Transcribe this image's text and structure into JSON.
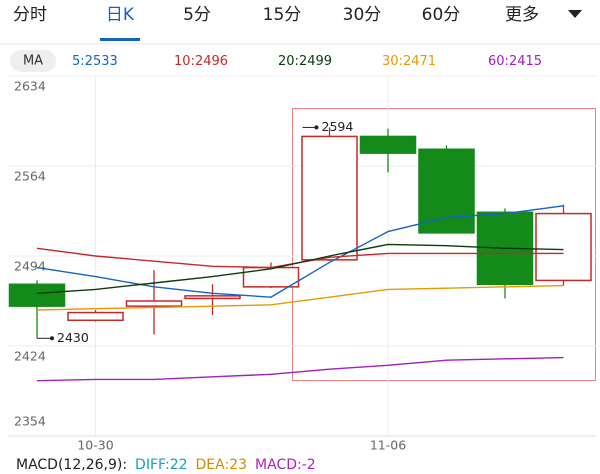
{
  "tabs": {
    "items": [
      "分时",
      "日K",
      "5分",
      "15分",
      "30分",
      "60分"
    ],
    "active": "日K",
    "more": "更多"
  },
  "chart_data": {
    "type": "candlestick",
    "ma_label": "MA",
    "separator": ":",
    "categories": [
      null,
      "10-30",
      null,
      null,
      null,
      null,
      "11-06",
      null,
      null,
      null
    ],
    "open": [
      2472,
      2444,
      2455,
      2461,
      2470,
      2491,
      2587,
      2577,
      2528,
      2475
    ],
    "high": [
      2475,
      2452,
      2483,
      2472,
      2489,
      2594,
      2593,
      2580,
      2531,
      2534
    ],
    "low": [
      2430,
      2443,
      2433,
      2448,
      2469,
      2490,
      2559,
      2512,
      2461,
      2471
    ],
    "close": [
      2455,
      2450,
      2459,
      2463,
      2485,
      2587,
      2574,
      2512,
      2472,
      2527
    ],
    "up_color": "#c62828",
    "down_color": "#138a1a",
    "series": [
      {
        "name": "5",
        "color": "#1565c0",
        "values": [
          2485,
          2478,
          2470,
          2465,
          2462,
          2489,
          2513,
          2524,
          2527,
          2533
        ]
      },
      {
        "name": "10",
        "color": "#c62828",
        "values": [
          2500,
          2494,
          2490,
          2486,
          2485,
          2493,
          2496,
          2496,
          2496,
          2496
        ]
      },
      {
        "name": "20",
        "color": "#0b3d0b",
        "values": [
          2465,
          2468,
          2473,
          2478,
          2484,
          2494,
          2503,
          2502,
          2500,
          2499
        ]
      },
      {
        "name": "30",
        "color": "#e69a00",
        "values": [
          2452,
          2453,
          2454,
          2455,
          2456,
          2462,
          2468,
          2469,
          2470,
          2471
        ]
      },
      {
        "name": "60",
        "color": "#a020c0",
        "values": [
          2397,
          2398,
          2398,
          2400,
          2402,
          2406,
          2409,
          2413,
          2414,
          2415
        ]
      }
    ],
    "ylim": [
      2354,
      2634
    ],
    "yticks": [
      2634,
      2564,
      2494,
      2424,
      2354
    ],
    "grid": true,
    "macd": {
      "label": "MACD(12,26,9)",
      "items": [
        {
          "name": "DIFF",
          "value": 22,
          "color": "#1aa0b0"
        },
        {
          "name": "DEA",
          "value": 23,
          "color": "#d48a00"
        },
        {
          "name": "MACD",
          "value": -2,
          "color": "#b020c0"
        }
      ]
    }
  }
}
